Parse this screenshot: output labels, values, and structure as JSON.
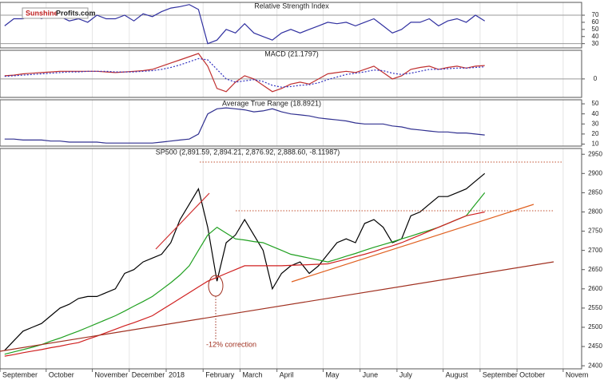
{
  "logo": {
    "brand": "Sunshine",
    "site": "Profits.com"
  },
  "chart_data": [
    {
      "type": "line",
      "title": "Relative Strength Index",
      "series": [
        {
          "name": "RSI",
          "color": "#3030a0",
          "style": "solid",
          "values": [
            55,
            65,
            65,
            70,
            65,
            70,
            68,
            62,
            65,
            60,
            70,
            65,
            65,
            70,
            62,
            72,
            68,
            75,
            80,
            82,
            85,
            78,
            30,
            35,
            50,
            45,
            58,
            45,
            40,
            35,
            45,
            50,
            45,
            50,
            55,
            60,
            58,
            60,
            55,
            60,
            65,
            55,
            45,
            50,
            60,
            60,
            65,
            55,
            62,
            65,
            60,
            70,
            62,
            null,
            null,
            null,
            null,
            null,
            null,
            null,
            null,
            null,
            null
          ]
        }
      ],
      "ylim": [
        24,
        88
      ],
      "yticks": [
        70,
        60,
        50,
        40,
        30
      ],
      "hlines": [
        70,
        30
      ]
    },
    {
      "type": "line",
      "title": "MACD (21.1797)",
      "series": [
        {
          "name": "MACD",
          "color": "#c03030",
          "style": "solid",
          "values": [
            5,
            6,
            8,
            9,
            10,
            11,
            12,
            12,
            12,
            12,
            12,
            11,
            10,
            11,
            12,
            13,
            15,
            20,
            25,
            30,
            35,
            40,
            20,
            -15,
            -20,
            -5,
            5,
            0,
            -10,
            -20,
            -15,
            -8,
            -5,
            -8,
            0,
            8,
            10,
            12,
            10,
            15,
            20,
            10,
            0,
            5,
            15,
            18,
            20,
            15,
            18,
            20,
            17,
            20,
            21,
            null,
            null,
            null,
            null,
            null,
            null,
            null,
            null,
            null,
            null
          ]
        },
        {
          "name": "Signal",
          "color": "#3030c0",
          "style": "dotted",
          "values": [
            4,
            5,
            6,
            7,
            8,
            9,
            10,
            11,
            11,
            12,
            12,
            12,
            11,
            11,
            11,
            12,
            13,
            15,
            18,
            22,
            27,
            32,
            30,
            15,
            0,
            -5,
            -3,
            -1,
            -4,
            -10,
            -13,
            -12,
            -10,
            -9,
            -6,
            -1,
            3,
            7,
            9,
            11,
            14,
            13,
            9,
            7,
            9,
            12,
            15,
            15,
            16,
            17,
            17,
            18,
            19,
            null,
            null,
            null,
            null,
            null,
            null,
            null,
            null,
            null,
            null
          ]
        }
      ],
      "ylim": [
        -29,
        45
      ],
      "yticks": [
        0
      ],
      "hlines": [
        0
      ]
    },
    {
      "type": "line",
      "title": "Average True Range (18.8921)",
      "series": [
        {
          "name": "ATR",
          "color": "#303090",
          "style": "solid",
          "values": [
            15,
            15,
            14,
            14,
            14,
            13,
            13,
            12,
            12,
            12,
            12,
            11,
            11,
            11,
            11,
            11,
            11,
            12,
            13,
            14,
            15,
            20,
            40,
            45,
            46,
            45,
            44,
            42,
            43,
            45,
            42,
            40,
            39,
            38,
            36,
            35,
            34,
            33,
            31,
            30,
            30,
            30,
            28,
            27,
            25,
            24,
            23,
            22,
            22,
            21,
            21,
            20,
            19,
            null,
            null,
            null,
            null,
            null,
            null,
            null,
            null,
            null,
            null
          ]
        }
      ],
      "ylim": [
        8,
        54
      ],
      "yticks": [
        50,
        40,
        30,
        20,
        10
      ]
    },
    {
      "type": "line",
      "title": "SP500 (2,891.59, 2,894.21, 2,876.92, 2,888.60, -8.11987)",
      "annotation": "-12% correction",
      "categories": [
        "September",
        null,
        null,
        null,
        null,
        "October",
        null,
        null,
        null,
        null,
        "November",
        null,
        null,
        null,
        "December",
        null,
        null,
        null,
        "2018",
        null,
        null,
        null,
        "February",
        null,
        null,
        null,
        "March",
        null,
        null,
        null,
        "April",
        null,
        null,
        null,
        null,
        "May",
        null,
        null,
        null,
        "June",
        null,
        null,
        null,
        "July",
        null,
        null,
        null,
        null,
        "August",
        null,
        null,
        null,
        "September",
        null,
        null,
        null,
        "October",
        null,
        null,
        null,
        null,
        "Novem",
        null
      ],
      "series": [
        {
          "name": "SP500",
          "color": "#000000",
          "style": "solid",
          "values": [
            2440,
            2465,
            2490,
            2500,
            2510,
            2530,
            2550,
            2560,
            2575,
            2580,
            2580,
            2590,
            2600,
            2640,
            2650,
            2670,
            2680,
            2690,
            2720,
            2780,
            2820,
            2860,
            2760,
            2620,
            2720,
            2740,
            2780,
            2740,
            2700,
            2600,
            2640,
            2660,
            2670,
            2640,
            2660,
            2690,
            2720,
            2730,
            2720,
            2770,
            2780,
            2760,
            2720,
            2730,
            2790,
            2800,
            2820,
            2840,
            2840,
            2850,
            2860,
            2880,
            2900,
            null,
            null,
            null,
            null,
            null,
            null,
            null,
            null,
            null,
            null
          ]
        },
        {
          "name": "MA50",
          "color": "#20a020",
          "style": "solid",
          "values": [
            2430,
            2436,
            2442,
            2448,
            2455,
            2464,
            2472,
            2481,
            2490,
            2500,
            2510,
            2520,
            2530,
            2542,
            2555,
            2567,
            2580,
            2598,
            2616,
            2636,
            2660,
            2700,
            2740,
            2760,
            2745,
            2730,
            2727,
            2723,
            2720,
            2710,
            2700,
            2690,
            2685,
            2680,
            2675,
            2670,
            2677,
            2685,
            2692,
            2700,
            2708,
            2715,
            2722,
            2730,
            2737,
            2745,
            2752,
            2760,
            2770,
            2780,
            2790,
            2820,
            2850,
            null,
            null,
            null,
            null,
            null,
            null,
            null,
            null,
            null,
            null
          ]
        },
        {
          "name": "MA200",
          "color": "#d02020",
          "style": "solid",
          "values": [
            2425,
            2429,
            2434,
            2438,
            2442,
            2447,
            2451,
            2456,
            2460,
            2469,
            2477,
            2486,
            2495,
            2504,
            2512,
            2521,
            2530,
            2545,
            2560,
            2575,
            2590,
            2605,
            2620,
            2630,
            2640,
            2650,
            2660,
            2660,
            2660,
            2660,
            2660,
            2661,
            2662,
            2663,
            2664,
            2665,
            2671,
            2677,
            2684,
            2690,
            2697,
            2705,
            2712,
            2720,
            2730,
            2740,
            2750,
            2760,
            2770,
            2780,
            2790,
            2795,
            2800,
            null,
            null,
            null,
            null,
            null,
            null,
            null,
            null,
            null,
            null
          ]
        }
      ],
      "ylim": [
        2392,
        2965
      ],
      "yticks": [
        2950,
        2900,
        2850,
        2800,
        2750,
        2700,
        2650,
        2600,
        2550,
        2500,
        2450,
        2400
      ]
    }
  ]
}
